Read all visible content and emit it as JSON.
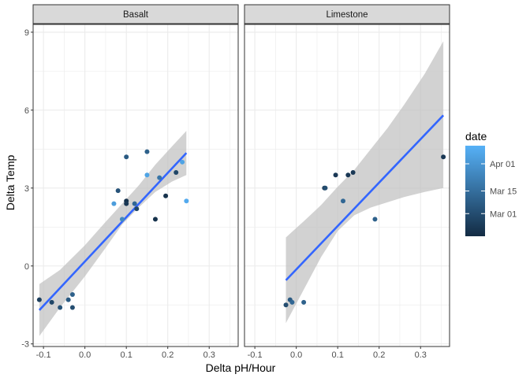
{
  "chart_data": {
    "type": "scatter",
    "xlabel": "Delta pH/Hour",
    "ylabel": "Delta Temp",
    "xlim": [
      -0.125,
      0.37
    ],
    "ylim": [
      -3.1,
      9.3
    ],
    "x_ticks": [
      -0.1,
      0.0,
      0.1,
      0.2,
      0.3
    ],
    "x_tick_labels": [
      "-0.1",
      "0.0",
      "0.1",
      "0.2",
      "0.3"
    ],
    "y_ticks": [
      -3,
      0,
      3,
      6,
      9
    ],
    "y_tick_labels": [
      "-3",
      "0",
      "3",
      "6",
      "9"
    ],
    "grid": true,
    "legend": {
      "title": "date",
      "position": "right",
      "labels": [
        "Apr 01",
        "Mar 15",
        "Mar 01"
      ],
      "label_values": [
        0.8,
        0.5,
        0.25
      ],
      "color_low": "#132B43",
      "color_high": "#56B1F7"
    },
    "colors": {
      "fit_line": "#3366FF",
      "ribbon": "#bfbfbf",
      "panel_border": "#333333",
      "strip_fill": "#d9d9d9",
      "grid": "#ebebeb"
    },
    "facets": [
      {
        "name": "Basalt",
        "points": [
          {
            "x": -0.11,
            "y": -1.3,
            "c": 0.15
          },
          {
            "x": -0.08,
            "y": -1.4,
            "c": 0.2
          },
          {
            "x": -0.06,
            "y": -1.6,
            "c": 0.3
          },
          {
            "x": -0.04,
            "y": -1.3,
            "c": 0.35
          },
          {
            "x": -0.03,
            "y": -1.6,
            "c": 0.25
          },
          {
            "x": -0.03,
            "y": -1.1,
            "c": 0.4
          },
          {
            "x": 0.07,
            "y": 2.4,
            "c": 0.85
          },
          {
            "x": 0.08,
            "y": 2.9,
            "c": 0.3
          },
          {
            "x": 0.09,
            "y": 1.8,
            "c": 0.7
          },
          {
            "x": 0.1,
            "y": 4.2,
            "c": 0.35
          },
          {
            "x": 0.1,
            "y": 2.5,
            "c": 0.05
          },
          {
            "x": 0.1,
            "y": 2.4,
            "c": 0.1
          },
          {
            "x": 0.12,
            "y": 2.4,
            "c": 0.45
          },
          {
            "x": 0.125,
            "y": 2.2,
            "c": 0.2
          },
          {
            "x": 0.15,
            "y": 4.4,
            "c": 0.4
          },
          {
            "x": 0.15,
            "y": 3.5,
            "c": 0.9
          },
          {
            "x": 0.17,
            "y": 1.8,
            "c": 0.05
          },
          {
            "x": 0.18,
            "y": 3.4,
            "c": 0.55
          },
          {
            "x": 0.195,
            "y": 2.7,
            "c": 0.05
          },
          {
            "x": 0.22,
            "y": 3.6,
            "c": 0.2
          },
          {
            "x": 0.235,
            "y": 4.0,
            "c": 0.9
          },
          {
            "x": 0.245,
            "y": 2.5,
            "c": 0.95
          }
        ],
        "fit": {
          "x": [
            -0.11,
            0.245
          ],
          "y": [
            -1.7,
            4.35
          ]
        },
        "ribbon": {
          "x": [
            -0.11,
            -0.06,
            0.0,
            0.05,
            0.09,
            0.13,
            0.17,
            0.21,
            0.245
          ],
          "lower": [
            -2.7,
            -1.6,
            -0.4,
            0.7,
            1.6,
            2.25,
            2.85,
            3.25,
            3.5
          ],
          "upper": [
            -0.7,
            -0.15,
            0.8,
            1.7,
            2.4,
            3.1,
            3.9,
            4.6,
            5.2
          ]
        }
      },
      {
        "name": "Limestone",
        "points": [
          {
            "x": -0.025,
            "y": -1.5,
            "c": 0.25
          },
          {
            "x": -0.015,
            "y": -1.3,
            "c": 0.35
          },
          {
            "x": -0.01,
            "y": -1.4,
            "c": 0.45
          },
          {
            "x": 0.018,
            "y": -1.4,
            "c": 0.4
          },
          {
            "x": 0.068,
            "y": 3.0,
            "c": 0.1
          },
          {
            "x": 0.07,
            "y": 3.0,
            "c": 0.25
          },
          {
            "x": 0.095,
            "y": 3.5,
            "c": 0.1
          },
          {
            "x": 0.113,
            "y": 2.5,
            "c": 0.45
          },
          {
            "x": 0.125,
            "y": 3.5,
            "c": 0.1
          },
          {
            "x": 0.137,
            "y": 3.6,
            "c": 0.1
          },
          {
            "x": 0.19,
            "y": 1.8,
            "c": 0.4
          },
          {
            "x": 0.355,
            "y": 4.2,
            "c": 0.1
          }
        ],
        "fit": {
          "x": [
            -0.025,
            0.355
          ],
          "y": [
            -0.55,
            5.8
          ]
        },
        "ribbon": {
          "x": [
            -0.025,
            0.02,
            0.06,
            0.1,
            0.14,
            0.18,
            0.22,
            0.26,
            0.31,
            0.355
          ],
          "lower": [
            -2.2,
            -0.85,
            0.35,
            1.35,
            1.95,
            2.25,
            2.45,
            2.65,
            2.85,
            3.0
          ],
          "upper": [
            1.1,
            1.75,
            2.35,
            3.05,
            3.7,
            4.5,
            5.3,
            6.2,
            7.4,
            8.65
          ]
        }
      }
    ]
  }
}
